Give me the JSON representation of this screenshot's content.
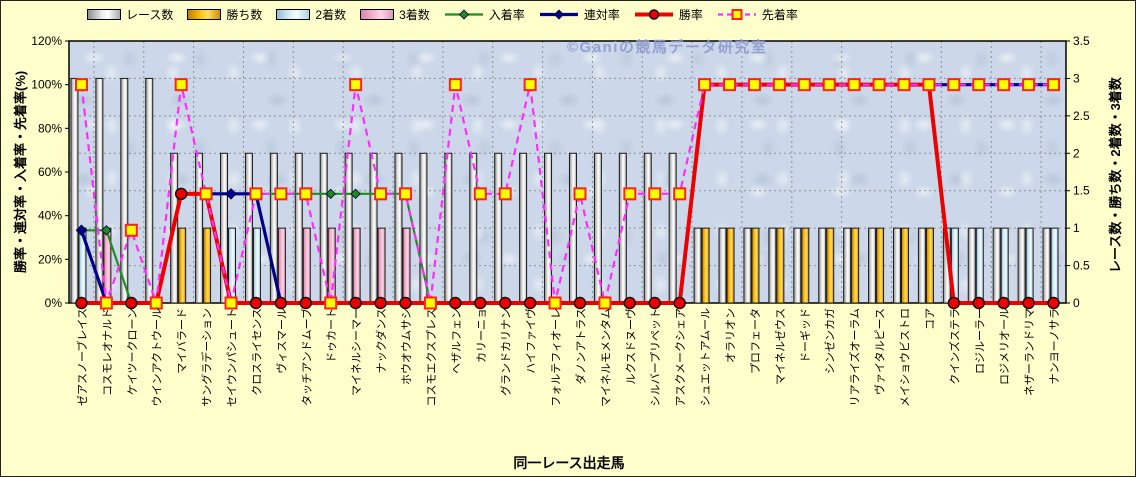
{
  "watermark": "©Ganiの競馬データ研究室",
  "axes": {
    "left_title": "勝率・連対率・入着率・先着率(%)",
    "right_title": "レース数・勝ち数・2着数・3着数",
    "x_title": "同一レース出走馬",
    "left_ticks": [
      "0%",
      "20%",
      "40%",
      "60%",
      "80%",
      "100%",
      "120%"
    ],
    "right_ticks": [
      "0",
      "0.5",
      "1",
      "1.5",
      "2",
      "2.5",
      "3",
      "3.5"
    ]
  },
  "legend": {
    "items": [
      {
        "label": "レース数",
        "swatch": "bar",
        "key": "races"
      },
      {
        "label": "勝ち数",
        "swatch": "bar",
        "key": "wins"
      },
      {
        "label": "2着数",
        "swatch": "bar",
        "key": "seconds"
      },
      {
        "label": "3着数",
        "swatch": "bar",
        "key": "thirds"
      },
      {
        "label": "入着率",
        "swatch": "line",
        "key": "nyuchaku"
      },
      {
        "label": "連対率",
        "swatch": "line",
        "key": "rentai"
      },
      {
        "label": "勝率",
        "swatch": "line",
        "key": "shoritsu"
      },
      {
        "label": "先着率",
        "swatch": "line",
        "key": "senchaku"
      }
    ]
  },
  "colors": {
    "background": "#ffffcc",
    "plot_bg": "#ccd8e9",
    "grid": "#909090",
    "bar_stroke": "#1a1a1a",
    "bars": {
      "races": [
        "#8f8f8f",
        "#e8e8e8",
        "#ffffff",
        "#adadad"
      ],
      "wins": [
        "#bf7f00",
        "#ffc61e",
        "#ffdd66",
        "#cf8f08"
      ],
      "seconds": [
        "#96bfd4",
        "#dbeffa",
        "#f2fbfe",
        "#aed3e2"
      ],
      "thirds": [
        "#d687a8",
        "#f7b6d2",
        "#fdd7e6",
        "#df97b8"
      ]
    },
    "lines": {
      "nyuchaku": "#1e8c1e",
      "rentai": "#00008b",
      "shoritsu": "#ee0000",
      "senchaku": "#ff2bff"
    },
    "marker_square_fill": "#ffff00",
    "marker_square_stroke": "#ff2020",
    "watermark": "#8d9ace"
  },
  "chart_data": {
    "type": "combo-bar-line",
    "categories": [
      "ゼアスノーブレイス",
      "コスモレオナルド",
      "ケイツークローン",
      "ウインアクトウール",
      "マイバラード",
      "サングラデーション",
      "セイウンパシュート",
      "クロスライセンス",
      "ヴィスマール",
      "タッチアンドムーブ",
      "ドゥカート",
      "マイネルシーマー",
      "ナックダンス",
      "ホウオウムサシ",
      "コスモエクスプレス",
      "ヘザルフェン",
      "カリーニョ",
      "グランドカリナン",
      "ハイファイヴ",
      "フォルテフィオーレ",
      "ダノンアトラス",
      "マイネルモメンタム",
      "ルクスドヌーヴ",
      "シルバープリペット",
      "アスクメークシェア",
      "シュエットアムール",
      "オラリオン",
      "プロフェータ",
      "マイネルゼウス",
      "ドーギッド",
      "シンゼンカガ",
      "リアライズオーラム",
      "ヴァイタルピース",
      "メイショウビストロ",
      "コア",
      "クインズステラ",
      "ロジルーラー",
      "ロジメリオール",
      "ネザーランドリマ",
      "ナンヨーノサラ"
    ],
    "left_axis": {
      "min": 0,
      "max": 120,
      "unit": "%"
    },
    "right_axis": {
      "min": 0,
      "max": 3.5
    },
    "grid": {
      "horizontal_step_right_axis": 0.5,
      "vertical_every_categories": 2
    },
    "bar_series": [
      {
        "name": "レース数",
        "key": "races",
        "axis": "right",
        "values": [
          3,
          3,
          3,
          3,
          2,
          2,
          2,
          2,
          2,
          2,
          2,
          2,
          2,
          2,
          2,
          2,
          2,
          2,
          2,
          2,
          2,
          2,
          2,
          2,
          2,
          1,
          1,
          1,
          1,
          1,
          1,
          1,
          1,
          1,
          1,
          1,
          1,
          1,
          1,
          1
        ]
      },
      {
        "name": "勝ち数",
        "key": "wins",
        "axis": "right",
        "values": [
          0,
          0,
          0,
          0,
          1,
          1,
          0,
          0,
          0,
          0,
          0,
          0,
          0,
          0,
          0,
          0,
          0,
          0,
          0,
          0,
          0,
          0,
          0,
          0,
          0,
          1,
          1,
          1,
          1,
          1,
          1,
          1,
          1,
          1,
          1,
          0,
          0,
          0,
          0,
          0
        ]
      },
      {
        "name": "2着数",
        "key": "seconds",
        "axis": "right",
        "values": [
          1,
          0,
          0,
          0,
          0,
          0,
          1,
          1,
          0,
          0,
          0,
          0,
          0,
          0,
          0,
          0,
          0,
          0,
          0,
          0,
          0,
          0,
          0,
          0,
          0,
          0,
          0,
          0,
          0,
          0,
          0,
          0,
          0,
          0,
          0,
          1,
          1,
          1,
          1,
          1
        ]
      },
      {
        "name": "3着数",
        "key": "thirds",
        "axis": "right",
        "values": [
          0,
          1,
          0,
          0,
          0,
          0,
          0,
          0,
          1,
          1,
          1,
          1,
          1,
          1,
          0,
          0,
          0,
          0,
          0,
          0,
          0,
          0,
          0,
          0,
          0,
          0,
          0,
          0,
          0,
          0,
          0,
          0,
          0,
          0,
          0,
          0,
          0,
          0,
          0,
          0
        ]
      }
    ],
    "line_series": [
      {
        "name": "入着率",
        "key": "nyuchaku",
        "axis": "left",
        "unit": "%",
        "values": [
          33.3,
          33.3,
          0,
          0,
          50,
          50,
          50,
          50,
          50,
          50,
          50,
          50,
          50,
          50,
          0,
          0,
          0,
          0,
          0,
          0,
          0,
          0,
          0,
          0,
          0,
          100,
          100,
          100,
          100,
          100,
          100,
          100,
          100,
          100,
          100,
          100,
          100,
          100,
          100,
          100
        ]
      },
      {
        "name": "連対率",
        "key": "rentai",
        "axis": "left",
        "unit": "%",
        "values": [
          33.3,
          0,
          0,
          0,
          50,
          50,
          50,
          50,
          0,
          0,
          0,
          0,
          0,
          0,
          0,
          0,
          0,
          0,
          0,
          0,
          0,
          0,
          0,
          0,
          0,
          100,
          100,
          100,
          100,
          100,
          100,
          100,
          100,
          100,
          100,
          100,
          100,
          100,
          100,
          100
        ]
      },
      {
        "name": "勝率",
        "key": "shoritsu",
        "axis": "left",
        "unit": "%",
        "values": [
          0,
          0,
          0,
          0,
          50,
          50,
          0,
          0,
          0,
          0,
          0,
          0,
          0,
          0,
          0,
          0,
          0,
          0,
          0,
          0,
          0,
          0,
          0,
          0,
          0,
          100,
          100,
          100,
          100,
          100,
          100,
          100,
          100,
          100,
          100,
          0,
          0,
          0,
          0,
          0
        ]
      },
      {
        "name": "先着率",
        "key": "senchaku",
        "axis": "left",
        "unit": "%",
        "values": [
          100,
          0,
          33.3,
          0,
          100,
          50,
          0,
          50,
          50,
          50,
          0,
          100,
          50,
          50,
          0,
          100,
          50,
          50,
          100,
          0,
          50,
          0,
          50,
          50,
          50,
          100,
          100,
          100,
          100,
          100,
          100,
          100,
          100,
          100,
          100,
          100,
          100,
          100,
          100,
          100
        ]
      }
    ]
  }
}
